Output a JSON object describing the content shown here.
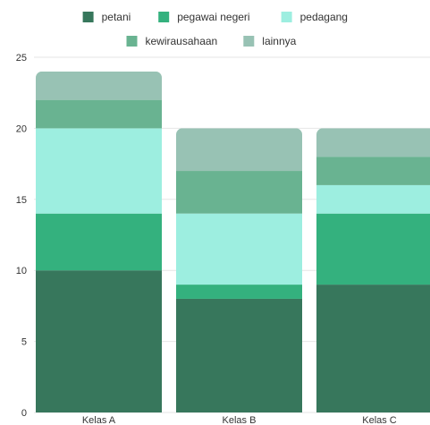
{
  "chart_data": {
    "type": "bar",
    "stacked": true,
    "categories": [
      "Kelas A",
      "Kelas B",
      "Kelas C"
    ],
    "series": [
      {
        "name": "petani",
        "values": [
          10,
          8,
          9
        ],
        "color": "#37775c"
      },
      {
        "name": "pegawai negeri",
        "values": [
          4,
          1,
          5
        ],
        "color": "#34b17e"
      },
      {
        "name": "pedagang",
        "values": [
          6,
          5,
          2
        ],
        "color": "#9deee0"
      },
      {
        "name": "kewirausahaan",
        "values": [
          2,
          3,
          2
        ],
        "color": "#69b391"
      },
      {
        "name": "lainnya",
        "values": [
          2,
          3,
          2
        ],
        "color": "#98c2b4"
      }
    ],
    "yticks": [
      0,
      5,
      10,
      15,
      20,
      25
    ],
    "ylim": [
      0,
      25
    ],
    "grid": true,
    "legend_position": "top"
  }
}
